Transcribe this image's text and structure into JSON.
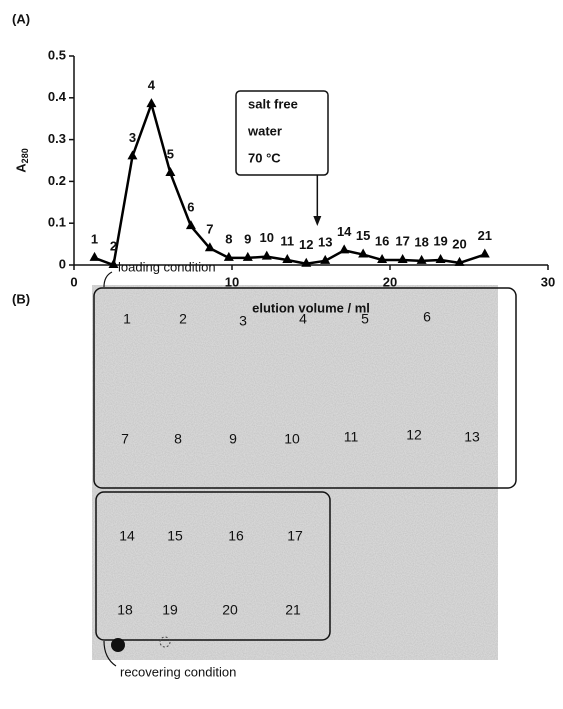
{
  "chart_data": {
    "type": "line",
    "panel_label": "(A)",
    "x_label": "elution volume / ml",
    "y_label": "A",
    "y_label_subscript": "280",
    "x": [
      1.3,
      2.5,
      3.7,
      4.9,
      6.1,
      7.4,
      8.6,
      9.8,
      11.0,
      12.2,
      13.5,
      14.7,
      15.9,
      17.1,
      18.3,
      19.5,
      20.8,
      22.0,
      23.2,
      24.4,
      26.0
    ],
    "series": [
      {
        "name": "A280",
        "color": "#000000",
        "values": [
          0.017,
          0,
          0.26,
          0.385,
          0.22,
          0.093,
          0.04,
          0.017,
          0.017,
          0.02,
          0.012,
          0.003,
          0.01,
          0.035,
          0.025,
          0.012,
          0.012,
          0.01,
          0.012,
          0.005,
          0.025
        ]
      }
    ],
    "point_labels": [
      "1",
      "2",
      "3",
      "4",
      "5",
      "6",
      "7",
      "8",
      "9",
      "10",
      "11",
      "12",
      "13",
      "14",
      "15",
      "16",
      "17",
      "18",
      "19",
      "20",
      "21"
    ],
    "annotation": {
      "lines": [
        "salt free",
        "water",
        "70 °C"
      ],
      "arrow_x": 15.4
    },
    "xlim": [
      0,
      30
    ],
    "xticks": [
      0,
      10,
      20,
      30
    ],
    "ylim": [
      0,
      0.5
    ],
    "yticks": [
      0,
      0.1,
      0.2,
      0.3,
      0.4,
      0.5
    ]
  },
  "panel_b": {
    "panel_label": "(B)",
    "loading": {
      "label": "loading condition",
      "wells": [
        "1",
        "2",
        "3",
        "4",
        "5",
        "6",
        "7",
        "8",
        "9",
        "10",
        "11",
        "12",
        "13"
      ]
    },
    "recovering": {
      "label": "recovering condition",
      "wells": [
        "14",
        "15",
        "16",
        "17",
        "18",
        "19",
        "20",
        "21"
      ]
    }
  }
}
